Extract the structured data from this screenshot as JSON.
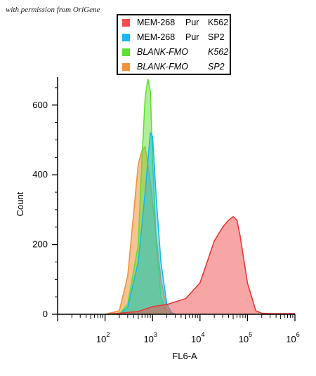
{
  "credit": "with permission from OriGene",
  "legend": [
    {
      "name": "MEM-268",
      "tag": "Pur",
      "cell": "K562",
      "color": "#f24c4c",
      "italic": false
    },
    {
      "name": "MEM-268",
      "tag": "Pur",
      "cell": "SP2",
      "color": "#19b8f0",
      "italic": false
    },
    {
      "name": "BLANK-FMO",
      "tag": "",
      "cell": "K562",
      "color": "#5fe032",
      "italic": true
    },
    {
      "name": "BLANK-FMO",
      "tag": "",
      "cell": "SP2",
      "color": "#f2923c",
      "italic": true
    }
  ],
  "chart_data": {
    "type": "area",
    "xlabel": "FL6-A",
    "ylabel": "Count",
    "x_scale": "log",
    "xlim": [
      10,
      1000000
    ],
    "ylim": [
      0,
      680
    ],
    "x_ticks": [
      {
        "base": "10",
        "exp": "2",
        "value": 100
      },
      {
        "base": "10",
        "exp": "3",
        "value": 1000
      },
      {
        "base": "10",
        "exp": "4",
        "value": 10000
      },
      {
        "base": "10",
        "exp": "5",
        "value": 100000
      },
      {
        "base": "10",
        "exp": "6",
        "value": 1000000
      }
    ],
    "y_ticks": [
      0,
      200,
      400,
      600
    ],
    "series": [
      {
        "name": "BLANK-FMO SP2",
        "color": "#f2923c",
        "fill": "rgba(242,146,60,0.55)",
        "x": [
          100,
          200,
          300,
          400,
          500,
          600,
          700,
          900,
          1000,
          1500,
          2000,
          2500
        ],
        "y": [
          0,
          10,
          110,
          290,
          430,
          470,
          480,
          380,
          320,
          100,
          15,
          0
        ]
      },
      {
        "name": "BLANK-FMO K562",
        "color": "#5fe032",
        "fill": "rgba(95,224,50,0.5)",
        "x": [
          200,
          300,
          500,
          600,
          700,
          800,
          900,
          1000,
          1200,
          1500,
          2000
        ],
        "y": [
          0,
          30,
          200,
          450,
          620,
          675,
          640,
          450,
          200,
          50,
          0
        ]
      },
      {
        "name": "MEM-268 Pur SP2",
        "color": "#19b8f0",
        "fill": "rgba(25,184,240,0.45)",
        "x": [
          200,
          300,
          500,
          700,
          900,
          1000,
          1200,
          1500,
          2000,
          2500,
          3000
        ],
        "y": [
          0,
          20,
          150,
          350,
          520,
          510,
          330,
          150,
          30,
          5,
          0
        ]
      },
      {
        "name": "MEM-268 Pur K562",
        "color": "#e83838",
        "fill": "rgba(242,76,76,0.5)",
        "x": [
          100,
          200,
          500,
          1000,
          2000,
          5000,
          10000,
          15000,
          20000,
          30000,
          40000,
          50000,
          60000,
          70000,
          100000,
          150000,
          200000,
          300000,
          1000000
        ],
        "y": [
          0,
          3,
          8,
          22,
          28,
          45,
          90,
          160,
          210,
          250,
          270,
          280,
          270,
          225,
          90,
          10,
          3,
          2,
          2
        ]
      }
    ]
  }
}
